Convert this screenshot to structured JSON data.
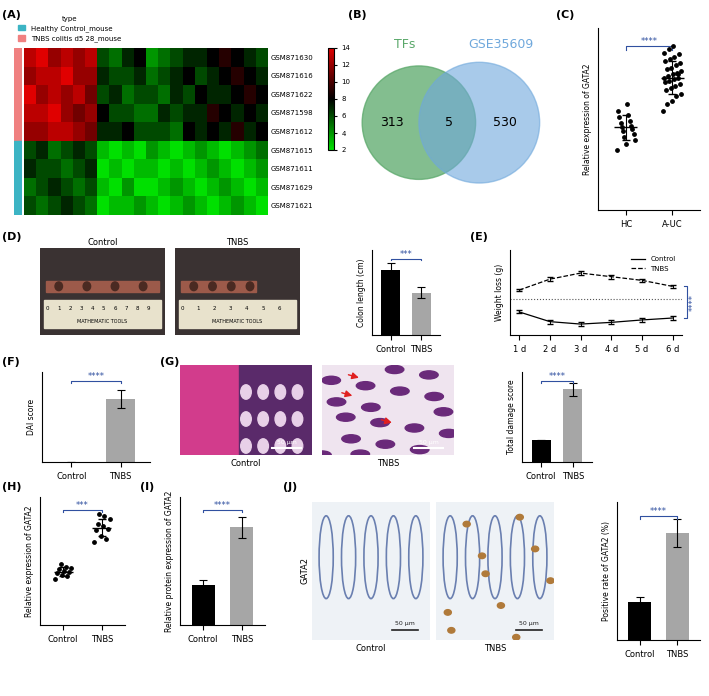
{
  "panel_labels": [
    "(A)",
    "(B)",
    "(C)",
    "(D)",
    "(E)",
    "(F)",
    "(G)",
    "(H)",
    "(I)",
    "(J)"
  ],
  "chart_data": [
    {
      "type": "heatmap",
      "rows": [
        "GSM871630",
        "GSM871616",
        "GSM871622",
        "GSM871598",
        "GSM871612",
        "GSM871615",
        "GSM871611",
        "GSM871629",
        "GSM871621"
      ],
      "row_groups": [
        "TNBS colitis d5 28_mouse",
        "TNBS colitis d5 28_mouse",
        "TNBS colitis d5 28_mouse",
        "TNBS colitis d5 28_mouse",
        "TNBS colitis d5 28_mouse",
        "Healthy Control_mouse",
        "Healthy Control_mouse",
        "Healthy Control_mouse",
        "Healthy Control_mouse"
      ],
      "legend_title": "type",
      "groups": [
        {
          "name": "Healthy Control_mouse",
          "color": "#3cb4c4"
        },
        {
          "name": "TNBS colitis d5 28_mouse",
          "color": "#f08080"
        }
      ],
      "cells": [
        [
          13,
          14,
          12,
          13,
          12,
          13,
          6,
          5,
          7,
          8,
          4,
          5,
          6,
          7,
          7,
          8,
          9,
          8,
          7,
          6
        ],
        [
          12,
          13,
          13,
          14,
          12,
          12,
          7,
          6,
          6,
          7,
          5,
          6,
          7,
          8,
          6,
          7,
          8,
          9,
          8,
          7
        ],
        [
          14,
          12,
          13,
          12,
          13,
          11,
          6,
          7,
          5,
          6,
          6,
          5,
          7,
          6,
          8,
          7,
          7,
          8,
          9,
          8
        ],
        [
          13,
          13,
          14,
          12,
          11,
          12,
          8,
          6,
          6,
          5,
          5,
          7,
          6,
          7,
          7,
          9,
          8,
          7,
          8,
          7
        ],
        [
          12,
          12,
          13,
          13,
          12,
          11,
          7,
          7,
          8,
          6,
          6,
          6,
          5,
          8,
          7,
          8,
          7,
          9,
          7,
          8
        ],
        [
          6,
          7,
          5,
          6,
          7,
          6,
          3,
          2,
          3,
          2,
          4,
          3,
          2,
          3,
          4,
          3,
          2,
          3,
          4,
          5
        ],
        [
          7,
          6,
          6,
          5,
          6,
          7,
          2,
          3,
          2,
          3,
          3,
          2,
          3,
          2,
          3,
          4,
          3,
          2,
          3,
          4
        ],
        [
          5,
          6,
          7,
          6,
          5,
          6,
          3,
          2,
          4,
          2,
          2,
          3,
          4,
          3,
          2,
          3,
          4,
          3,
          2,
          3
        ],
        [
          6,
          5,
          6,
          7,
          6,
          5,
          2,
          3,
          3,
          4,
          3,
          2,
          3,
          4,
          3,
          2,
          3,
          4,
          3,
          2
        ]
      ],
      "colorbar": {
        "range": [
          2,
          14
        ],
        "ticks": [
          2,
          4,
          6,
          8,
          10,
          12,
          14
        ]
      },
      "tick_labels": "y"
    },
    {
      "type": "venn",
      "sets": [
        {
          "name": "TFs",
          "color": "#5aa86a"
        },
        {
          "name": "GSE35609",
          "color": "#6fa8dc"
        }
      ],
      "values": [
        313,
        5,
        530
      ]
    },
    {
      "type": "scatter",
      "categories": [
        "HC",
        "A-UC"
      ],
      "points": [
        [
          0.72,
          0.8,
          0.85,
          0.88,
          0.92,
          0.95,
          0.98,
          1.0,
          1.02,
          1.05,
          1.08,
          1.12,
          1.15,
          1.2,
          1.28
        ],
        [
          1.2,
          1.28,
          1.32,
          1.38,
          1.4,
          1.45,
          1.48,
          1.5,
          1.52,
          1.55,
          1.56,
          1.58,
          1.6,
          1.6,
          1.62,
          1.64,
          1.66,
          1.68,
          1.7,
          1.72,
          1.75,
          1.78,
          1.8,
          1.82,
          1.85,
          1.88,
          1.9,
          1.95,
          1.98,
          1.65
        ]
      ],
      "means": [
        1.0,
        1.6
      ],
      "errors": [
        0.15,
        0.2
      ],
      "color": "#000000",
      "ylabel": "Relative expression of GATA2",
      "ylim": [
        0,
        2.2
      ],
      "tick_labels": "x",
      "annotations": [
        "****"
      ]
    },
    {
      "type": "bar",
      "categories": [
        "Control",
        "TNBS"
      ],
      "values": [
        7.7,
        5.0
      ],
      "errors": [
        0.8,
        0.6
      ],
      "colors": [
        "#000000",
        "#a6a6a6"
      ],
      "ylabel": "Colon length (cm)",
      "ylim": [
        0,
        10
      ],
      "tick_labels": "x",
      "annotations": [
        "***"
      ]
    },
    {
      "type": "line",
      "categories": [
        "1 d",
        "2 d",
        "3 d",
        "4 d",
        "5 d",
        "6 d"
      ],
      "series": [
        {
          "name": "Control",
          "color": "#000000",
          "line_style": "solid",
          "values": [
            -0.55,
            -0.95,
            -1.05,
            -0.98,
            -0.88,
            -0.8
          ],
          "errors": [
            0.06,
            0.08,
            0.08,
            0.08,
            0.07,
            0.07
          ]
        },
        {
          "name": "TNBS",
          "color": "#000000",
          "line_style": "dashed",
          "values": [
            0.35,
            0.8,
            1.05,
            0.9,
            0.75,
            0.5
          ],
          "errors": [
            0.05,
            0.07,
            0.08,
            0.08,
            0.07,
            0.06
          ]
        }
      ],
      "hline": 0,
      "ylabel": "Weight loss (g)",
      "ylim": [
        -1.5,
        2.0
      ],
      "tick_labels": "x",
      "legend": "upper right",
      "annotations": [
        "****"
      ]
    },
    {
      "type": "bar",
      "categories": [
        "Control",
        "TNBS"
      ],
      "values": [
        0,
        3.5
      ],
      "errors": [
        0,
        0.5
      ],
      "colors": [
        "#000000",
        "#a6a6a6"
      ],
      "ylabel": "DAI score",
      "ylim": [
        0,
        5
      ],
      "tick_labels": "x",
      "annotations": [
        "****"
      ]
    },
    {
      "type": "bar",
      "categories": [
        "Control",
        "TNBS"
      ],
      "values": [
        3.0,
        9.7
      ],
      "errors": [
        0,
        0.9
      ],
      "colors": [
        "#000000",
        "#a6a6a6"
      ],
      "ylabel": "Total damage score",
      "ylim": [
        0,
        12
      ],
      "tick_labels": "x",
      "annotations": [
        "****"
      ]
    },
    {
      "type": "scatter",
      "categories": [
        "Control",
        "TNBS"
      ],
      "points": [
        [
          0.82,
          0.88,
          0.9,
          0.93,
          0.95,
          0.97,
          1.0,
          1.02,
          1.05,
          1.1
        ],
        [
          1.5,
          1.55,
          1.6,
          1.7,
          1.72,
          1.78,
          1.82,
          1.9,
          1.95,
          2.0
        ]
      ],
      "means": [
        0.96,
        1.75
      ],
      "errors": [
        0.08,
        0.15
      ],
      "color": "#000000",
      "ylabel": "Relative expression of GATA2",
      "ylim": [
        0,
        2.3
      ],
      "tick_labels": "x",
      "annotations": [
        "***"
      ]
    },
    {
      "type": "bar",
      "categories": [
        "Control",
        "TNBS"
      ],
      "values": [
        0.5,
        1.22
      ],
      "errors": [
        0.06,
        0.13
      ],
      "colors": [
        "#000000",
        "#a6a6a6"
      ],
      "ylabel": "Relative protein expression of GATA2",
      "ylim": [
        0,
        1.6
      ],
      "tick_labels": "x",
      "annotations": [
        "****"
      ]
    },
    {
      "type": "bar",
      "categories": [
        "Control",
        "TNBS"
      ],
      "values": [
        22,
        62
      ],
      "errors": [
        3,
        8
      ],
      "colors": [
        "#000000",
        "#a6a6a6"
      ],
      "ylabel": "Positive rate of GATA2 (%)",
      "ylim": [
        0,
        80
      ],
      "tick_labels": "x",
      "annotations": [
        "****"
      ]
    }
  ],
  "images": [
    {
      "titles": [
        "Control",
        "TNBS"
      ],
      "ruler_numbers": [
        [
          0,
          1,
          2,
          3,
          4,
          5,
          6,
          7,
          8,
          9
        ],
        [
          0,
          1,
          2,
          3,
          4,
          5,
          6
        ]
      ],
      "ruler_text": "MATHEMATIC TOOLS"
    },
    {
      "titles": [
        "Control",
        "TNBS"
      ],
      "scale_bar": "50 μm"
    },
    {
      "titles": [
        "Control",
        "TNBS"
      ],
      "row_label": "GATA2",
      "scale_bar": "50 μm"
    }
  ]
}
